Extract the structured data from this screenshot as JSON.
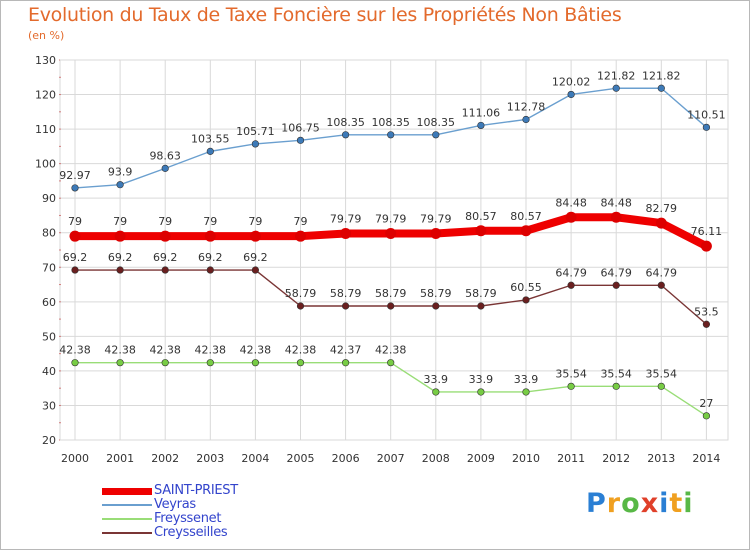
{
  "title": "Evolution du Taux de Taxe Foncière sur les Propriétés Non Bâties",
  "unit": "(en %)",
  "colors": {
    "title": "#e36a2c",
    "grid": "#d9d9d9",
    "axis_tick": "#cc2222",
    "legend_text": "#3344cc"
  },
  "chart_data": {
    "type": "line",
    "title": "Evolution du Taux de Taxe Foncière sur les Propriétés Non Bâties",
    "xlabel": "",
    "ylabel": "(en %)",
    "ylim": [
      20,
      130
    ],
    "yticks": [
      20,
      30,
      40,
      50,
      60,
      70,
      80,
      90,
      100,
      110,
      120,
      130
    ],
    "grid": true,
    "legend_position": "bottom-left",
    "categories": [
      "2000",
      "2001",
      "2002",
      "2003",
      "2004",
      "2005",
      "2006",
      "2007",
      "2008",
      "2009",
      "2010",
      "2011",
      "2012",
      "2013",
      "2014"
    ],
    "series": [
      {
        "name": "Veyras",
        "color": "#6a9fcf",
        "marker": "#3d7ab8",
        "values": [
          92.97,
          93.9,
          98.63,
          103.55,
          105.71,
          106.75,
          108.35,
          108.35,
          108.35,
          111.06,
          112.78,
          120.02,
          121.82,
          121.82,
          110.51
        ],
        "labels": [
          "92.97",
          "93.9",
          "98.63",
          "103.55",
          "105.71",
          "106.75",
          "108.35",
          "108.35",
          "108.35",
          "111.06",
          "112.78",
          "120.02",
          "121.82",
          "121.82",
          "110.51"
        ]
      },
      {
        "name": "SAINT-PRIEST",
        "color": "#ee0000",
        "marker": "#dd0000",
        "values": [
          79,
          79,
          79,
          79,
          79,
          79,
          79.79,
          79.79,
          79.79,
          80.57,
          80.57,
          84.48,
          84.48,
          82.79,
          76.11
        ],
        "labels": [
          "79",
          "79",
          "79",
          "79",
          "79",
          "79",
          "79.79",
          "79.79",
          "79.79",
          "80.57",
          "80.57",
          "84.48",
          "84.48",
          "82.79",
          "76.11"
        ]
      },
      {
        "name": "Creysseilles",
        "color": "#7a3535",
        "marker": "#6a1f1f",
        "values": [
          69.2,
          69.2,
          69.2,
          69.2,
          69.2,
          58.79,
          58.79,
          58.79,
          58.79,
          58.79,
          60.55,
          64.79,
          64.79,
          64.79,
          53.5
        ],
        "labels": [
          "69.2",
          "69.2",
          "69.2",
          "69.2",
          "69.2",
          "58.79",
          "58.79",
          "58.79",
          "58.79",
          "58.79",
          "60.55",
          "64.79",
          "64.79",
          "64.79",
          "53.5"
        ]
      },
      {
        "name": "Freyssenet",
        "color": "#99dd77",
        "marker": "#77cc44",
        "values": [
          42.38,
          42.38,
          42.38,
          42.38,
          42.38,
          42.38,
          42.37,
          42.38,
          33.9,
          33.9,
          33.9,
          35.54,
          35.54,
          35.54,
          27
        ],
        "labels": [
          "42.38",
          "42.38",
          "42.38",
          "42.38",
          "42.38",
          "42.38",
          "42.37",
          "42.38",
          "33.9",
          "33.9",
          "33.9",
          "35.54",
          "35.54",
          "35.54",
          "27"
        ]
      }
    ]
  },
  "legend": [
    {
      "name": "SAINT-PRIEST",
      "color": "#ee0000",
      "thick": true
    },
    {
      "name": "Veyras",
      "color": "#6a9fcf",
      "thick": false
    },
    {
      "name": "Freyssenet",
      "color": "#99dd77",
      "thick": false
    },
    {
      "name": "Creysseilles",
      "color": "#7a3535",
      "thick": false
    }
  ],
  "logo": {
    "letters": [
      "P",
      "r",
      "o",
      "x",
      "i",
      "t",
      "i"
    ],
    "colors": [
      "#2a7fd4",
      "#f0a020",
      "#58b846",
      "#e0402a",
      "#2a7fd4",
      "#f0a020",
      "#58b846"
    ]
  }
}
